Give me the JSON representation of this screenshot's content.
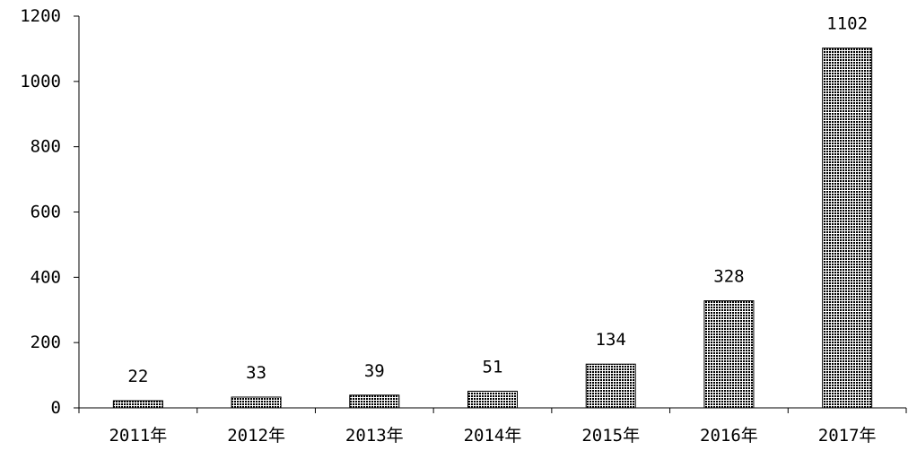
{
  "chart_data": {
    "type": "bar",
    "title": "",
    "xlabel": "",
    "ylabel": "",
    "categories": [
      "2011年",
      "2012年",
      "2013年",
      "2014年",
      "2015年",
      "2016年",
      "2017年"
    ],
    "values": [
      22,
      33,
      39,
      51,
      134,
      328,
      1102
    ],
    "data_labels": [
      "22",
      "33",
      "39",
      "51",
      "134",
      "328",
      "1102"
    ],
    "ylim": [
      0,
      1200
    ],
    "y_ticks": [
      0,
      200,
      400,
      600,
      800,
      1000,
      1200
    ],
    "y_tick_labels": [
      "0",
      "200",
      "400",
      "600",
      "800",
      "1000",
      "1200"
    ],
    "grid": false,
    "legend": "none",
    "bar_fill": "dotted-dark",
    "colors": {
      "bar_dot": "#000000",
      "bar_background": "#ffffff",
      "axis": "#000000",
      "text": "#000000"
    }
  }
}
